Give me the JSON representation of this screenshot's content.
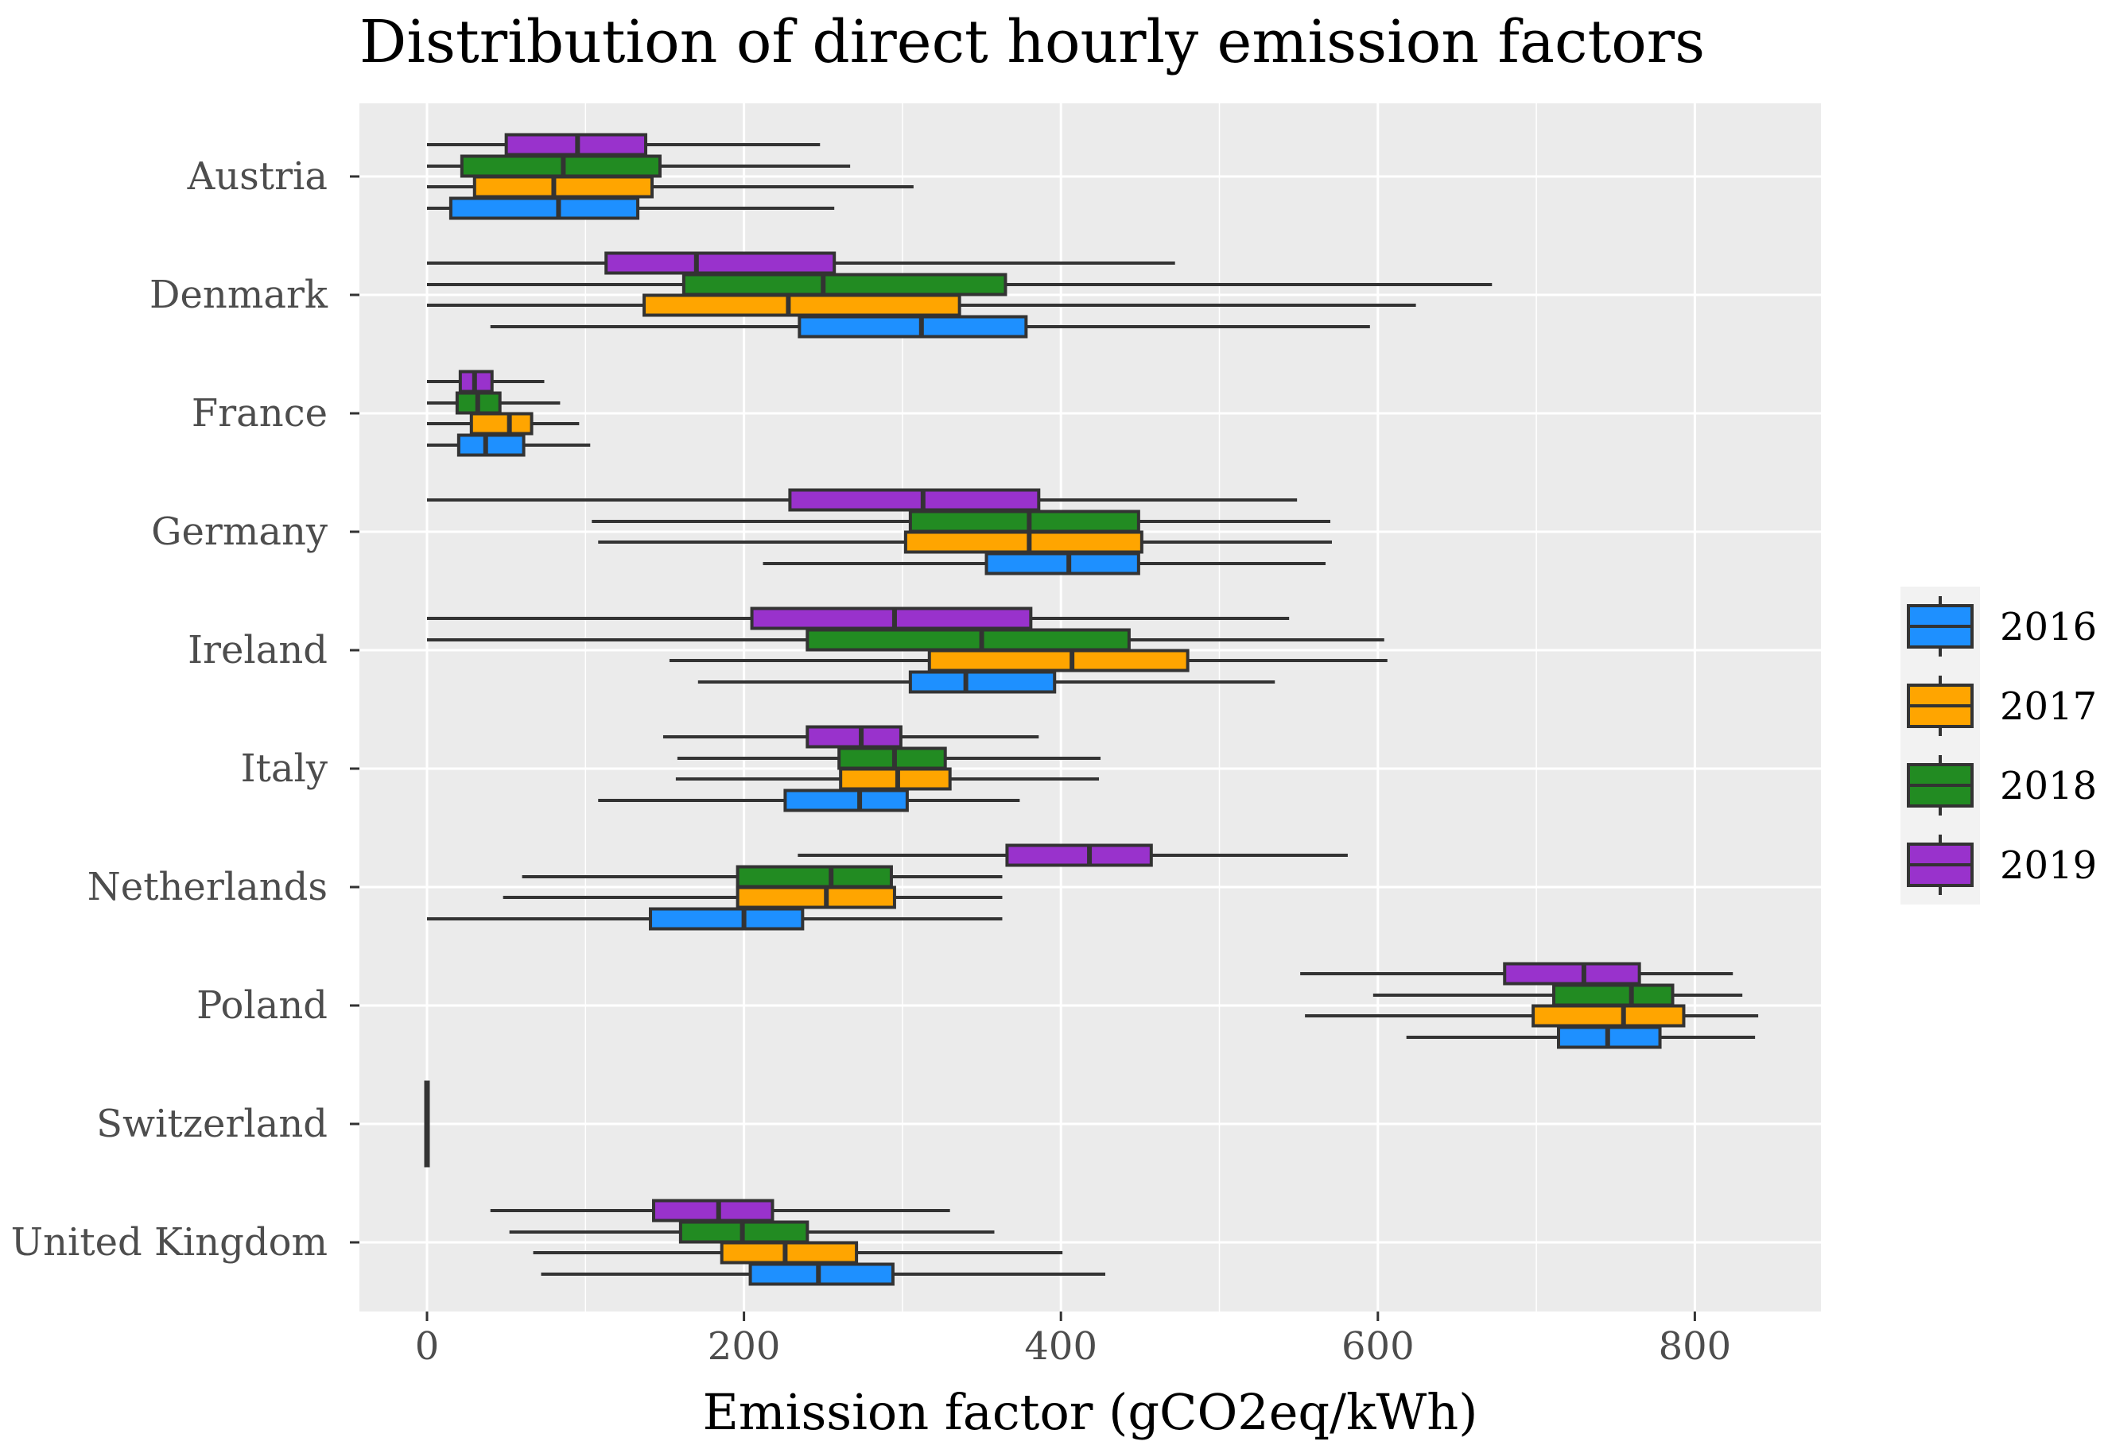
{
  "chart_data": {
    "type": "boxplot",
    "orientation": "horizontal",
    "title": "Distribution of direct hourly emission factors",
    "xlabel": "Emission factor (gCO2eq/kWh)",
    "ylabel": "",
    "xlim": [
      -40,
      880
    ],
    "x_ticks": [
      0,
      200,
      400,
      600,
      800
    ],
    "x_tick_labels": [
      "0",
      "200",
      "400",
      "600",
      "800"
    ],
    "grid": true,
    "legend_position": "right",
    "series_colors": {
      "2016": "#1e90ff",
      "2017": "#ffa500",
      "2018": "#228b22",
      "2019": "#9932cc"
    },
    "legend": [
      "2016",
      "2017",
      "2018",
      "2019"
    ],
    "categories": [
      "Austria",
      "Denmark",
      "France",
      "Germany",
      "Ireland",
      "Italy",
      "Netherlands",
      "Poland",
      "Switzerland",
      "United Kingdom"
    ],
    "boxes": {
      "Austria": {
        "2016": {
          "min": 0,
          "q1": 15,
          "median": 83,
          "q3": 133,
          "max": 257
        },
        "2017": {
          "min": 0,
          "q1": 30,
          "median": 80,
          "q3": 142,
          "max": 307
        },
        "2018": {
          "min": 0,
          "q1": 22,
          "median": 86,
          "q3": 147,
          "max": 267
        },
        "2019": {
          "min": 0,
          "q1": 50,
          "median": 95,
          "q3": 138,
          "max": 248
        }
      },
      "Denmark": {
        "2016": {
          "min": 40,
          "q1": 235,
          "median": 312,
          "q3": 378,
          "max": 595
        },
        "2017": {
          "min": 0,
          "q1": 137,
          "median": 228,
          "q3": 336,
          "max": 624
        },
        "2018": {
          "min": 0,
          "q1": 162,
          "median": 250,
          "q3": 365,
          "max": 672
        },
        "2019": {
          "min": 0,
          "q1": 113,
          "median": 170,
          "q3": 257,
          "max": 472
        }
      },
      "France": {
        "2016": {
          "min": 0,
          "q1": 20,
          "median": 37,
          "q3": 61,
          "max": 103
        },
        "2017": {
          "min": 0,
          "q1": 28,
          "median": 52,
          "q3": 66,
          "max": 96
        },
        "2018": {
          "min": 0,
          "q1": 19,
          "median": 32,
          "q3": 46,
          "max": 84
        },
        "2019": {
          "min": 0,
          "q1": 21,
          "median": 30,
          "q3": 41,
          "max": 74
        }
      },
      "Germany": {
        "2016": {
          "min": 212,
          "q1": 353,
          "median": 405,
          "q3": 449,
          "max": 567
        },
        "2017": {
          "min": 108,
          "q1": 302,
          "median": 380,
          "q3": 451,
          "max": 571
        },
        "2018": {
          "min": 104,
          "q1": 305,
          "median": 380,
          "q3": 449,
          "max": 570
        },
        "2019": {
          "min": 0,
          "q1": 229,
          "median": 313,
          "q3": 386,
          "max": 549
        }
      },
      "Ireland": {
        "2016": {
          "min": 171,
          "q1": 305,
          "median": 340,
          "q3": 396,
          "max": 535
        },
        "2017": {
          "min": 153,
          "q1": 317,
          "median": 407,
          "q3": 480,
          "max": 606
        },
        "2018": {
          "min": 0,
          "q1": 240,
          "median": 350,
          "q3": 443,
          "max": 604
        },
        "2019": {
          "min": 0,
          "q1": 205,
          "median": 295,
          "q3": 381,
          "max": 544
        }
      },
      "Italy": {
        "2016": {
          "min": 108,
          "q1": 226,
          "median": 273,
          "q3": 303,
          "max": 374
        },
        "2017": {
          "min": 157,
          "q1": 261,
          "median": 297,
          "q3": 330,
          "max": 424
        },
        "2018": {
          "min": 158,
          "q1": 260,
          "median": 295,
          "q3": 327,
          "max": 425
        },
        "2019": {
          "min": 149,
          "q1": 240,
          "median": 274,
          "q3": 299,
          "max": 386
        }
      },
      "Netherlands": {
        "2016": {
          "min": 0,
          "q1": 141,
          "median": 200,
          "q3": 237,
          "max": 363
        },
        "2017": {
          "min": 48,
          "q1": 196,
          "median": 252,
          "q3": 295,
          "max": 363
        },
        "2018": {
          "min": 60,
          "q1": 196,
          "median": 255,
          "q3": 293,
          "max": 363
        },
        "2019": {
          "min": 234,
          "q1": 366,
          "median": 418,
          "q3": 457,
          "max": 581
        }
      },
      "Poland": {
        "2016": {
          "min": 618,
          "q1": 714,
          "median": 745,
          "q3": 778,
          "max": 838
        },
        "2017": {
          "min": 554,
          "q1": 698,
          "median": 755,
          "q3": 793,
          "max": 840
        },
        "2018": {
          "min": 597,
          "q1": 711,
          "median": 760,
          "q3": 786,
          "max": 830
        },
        "2019": {
          "min": 551,
          "q1": 680,
          "median": 730,
          "q3": 765,
          "max": 824
        }
      },
      "Switzerland": {
        "2016": {
          "min": 0,
          "q1": 0,
          "median": 0,
          "q3": 0,
          "max": 0
        },
        "2017": {
          "min": 0,
          "q1": 0,
          "median": 0,
          "q3": 0,
          "max": 0
        },
        "2018": {
          "min": 0,
          "q1": 0,
          "median": 0,
          "q3": 0,
          "max": 0
        },
        "2019": {
          "min": 0,
          "q1": 0,
          "median": 0,
          "q3": 0,
          "max": 0
        }
      },
      "United Kingdom": {
        "2016": {
          "min": 72,
          "q1": 204,
          "median": 247,
          "q3": 294,
          "max": 428
        },
        "2017": {
          "min": 67,
          "q1": 186,
          "median": 226,
          "q3": 271,
          "max": 401
        },
        "2018": {
          "min": 52,
          "q1": 160,
          "median": 199,
          "q3": 240,
          "max": 358
        },
        "2019": {
          "min": 40,
          "q1": 143,
          "median": 184,
          "q3": 218,
          "max": 330
        }
      }
    }
  }
}
